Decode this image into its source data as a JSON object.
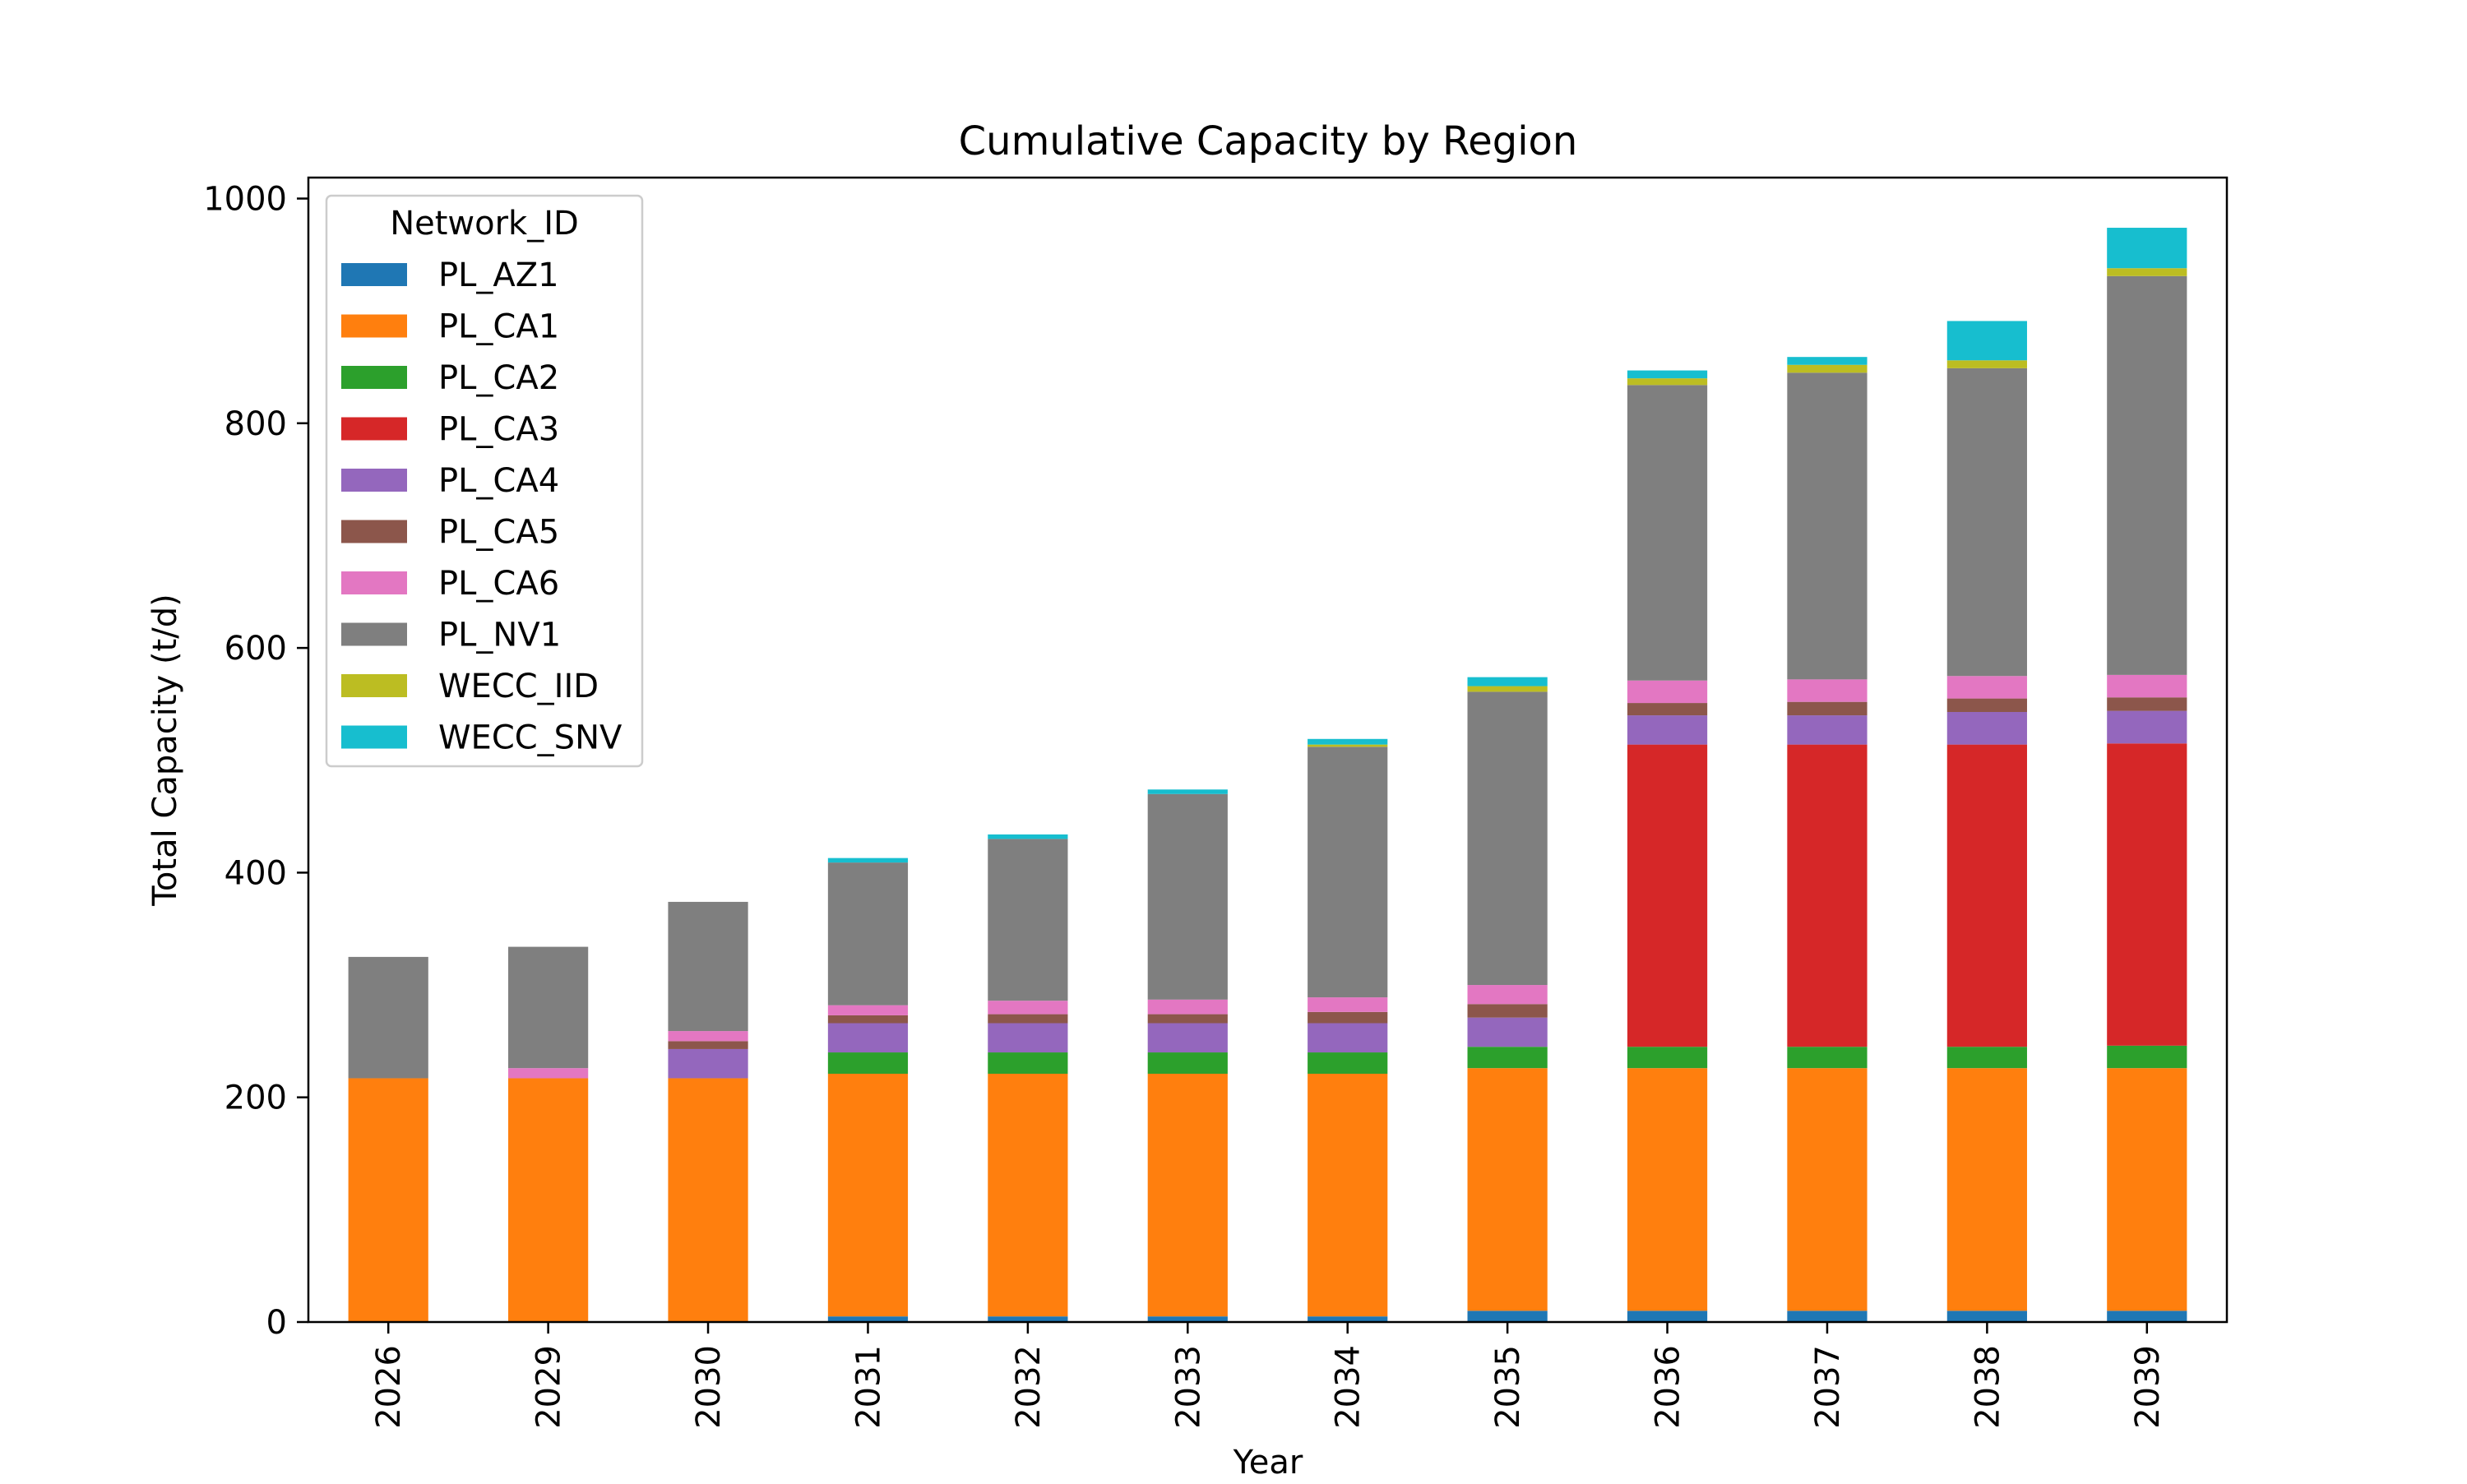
{
  "chart_data": {
    "type": "bar",
    "stacked": true,
    "title": "Cumulative Capacity by Region",
    "xlabel": "Year",
    "ylabel": "Total Capacity (t/d)",
    "ylim": [
      0,
      1020
    ],
    "yticks": [
      0,
      200,
      400,
      600,
      800,
      1000
    ],
    "categories": [
      "2026",
      "2029",
      "2030",
      "2031",
      "2032",
      "2033",
      "2034",
      "2035",
      "2036",
      "2037",
      "2038",
      "2039"
    ],
    "grid": false,
    "legend": {
      "title": "Network_ID",
      "position": "top-left"
    },
    "series": [
      {
        "name": "PL_AZ1",
        "color": "#1f77b4",
        "values": [
          0,
          0,
          0,
          5,
          5,
          5,
          5,
          10,
          10,
          10,
          10,
          10
        ]
      },
      {
        "name": "PL_CA1",
        "color": "#ff7f0e",
        "values": [
          217,
          217,
          217,
          216,
          216,
          216,
          216,
          216,
          216,
          216,
          216,
          216
        ]
      },
      {
        "name": "PL_CA2",
        "color": "#2ca02c",
        "values": [
          0,
          0,
          0,
          19,
          19,
          19,
          19,
          19,
          19,
          19,
          19,
          20
        ]
      },
      {
        "name": "PL_CA3",
        "color": "#d62728",
        "values": [
          0,
          0,
          0,
          0,
          0,
          0,
          0,
          0,
          269,
          269,
          269,
          269
        ]
      },
      {
        "name": "PL_CA4",
        "color": "#9467bd",
        "values": [
          0,
          0,
          26,
          26,
          26,
          26,
          26,
          26,
          26,
          26,
          29,
          29
        ]
      },
      {
        "name": "PL_CA5",
        "color": "#8c564b",
        "values": [
          0,
          0,
          7,
          7,
          8,
          8,
          10,
          12,
          11,
          12,
          12,
          12
        ]
      },
      {
        "name": "PL_CA6",
        "color": "#e377c2",
        "values": [
          0,
          9,
          9,
          9,
          12,
          13,
          13,
          17,
          20,
          20,
          20,
          20
        ]
      },
      {
        "name": "PL_NV1",
        "color": "#7f7f7f",
        "values": [
          108,
          108,
          115,
          127,
          144,
          183,
          223,
          261,
          263,
          273,
          274,
          355
        ]
      },
      {
        "name": "WECC_IID",
        "color": "#bcbd22",
        "values": [
          0,
          0,
          0,
          0,
          0,
          0,
          2,
          5,
          6,
          7,
          7,
          7
        ]
      },
      {
        "name": "WECC_SNV",
        "color": "#17becf",
        "values": [
          0,
          0,
          0,
          4,
          4,
          4,
          5,
          8,
          7,
          7,
          35,
          36
        ]
      }
    ]
  }
}
